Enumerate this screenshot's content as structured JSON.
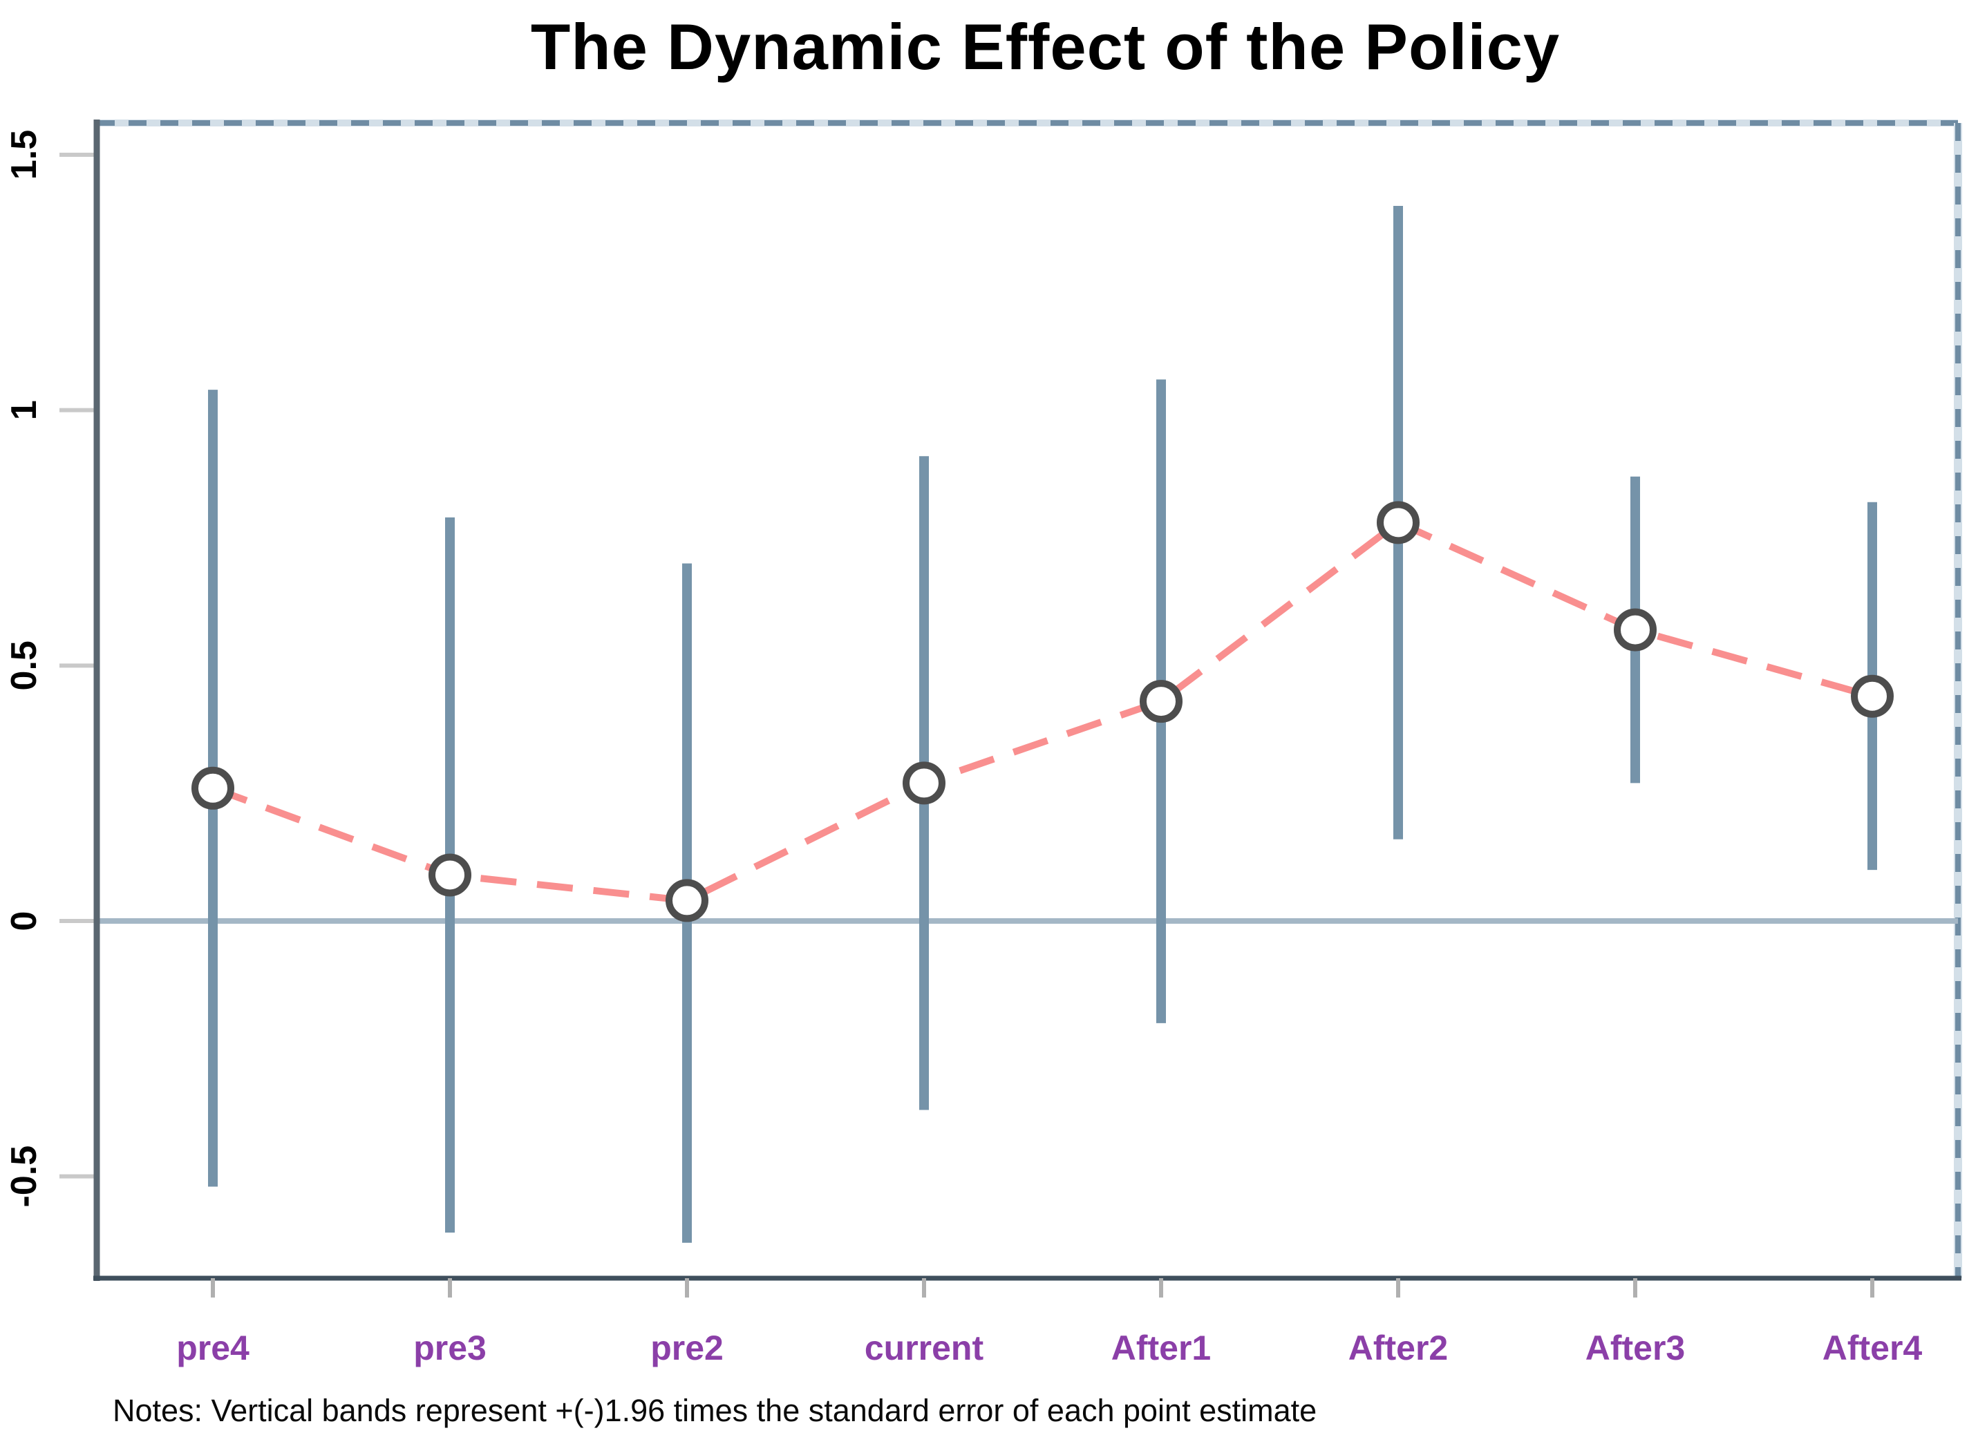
{
  "chart_data": {
    "type": "line",
    "title": "The Dynamic Effect of the Policy",
    "notes": "Notes: Vertical bands represent +(-)1.96 times the standard error of each point estimate",
    "categories": [
      "pre4",
      "pre3",
      "pre2",
      "current",
      "After1",
      "After2",
      "After3",
      "After4"
    ],
    "series": [
      {
        "name": "point-estimate",
        "values": [
          0.26,
          0.09,
          0.04,
          0.27,
          0.43,
          0.78,
          0.57,
          0.44
        ]
      }
    ],
    "ci_high": [
      1.04,
      0.79,
      0.7,
      0.91,
      1.06,
      1.4,
      0.87,
      0.82
    ],
    "ci_low": [
      -0.52,
      -0.61,
      -0.63,
      -0.37,
      -0.2,
      0.16,
      0.27,
      0.1
    ],
    "yticks": {
      "labels": [
        "1.5",
        "1",
        "0.5",
        "0",
        "-0.5"
      ],
      "values": [
        1.5,
        1,
        0.5,
        0,
        -0.5
      ]
    },
    "ylim": [
      -0.7,
      1.56
    ],
    "zero_line_value": 0,
    "grid": "off",
    "legend": "none",
    "marker": "open-circle",
    "line_style": "dashed",
    "colors": {
      "estimate_line": "#f98f8f",
      "ci_band": "#7593a9",
      "zero_line": "#a4b7c6",
      "frame_dashed": "#6f8ca3",
      "frame_dashed_halo": "#d3dfe8",
      "frame_left": "#5a6670",
      "frame_bottom": "#3f4f5c",
      "y_tick": "#c9c9c9",
      "x_tick": "#b0b0b0",
      "marker_ring": "#4d4d4d",
      "marker_fill": "#ffffff",
      "x_label": "#8b3fa8",
      "text": "#000000"
    }
  }
}
